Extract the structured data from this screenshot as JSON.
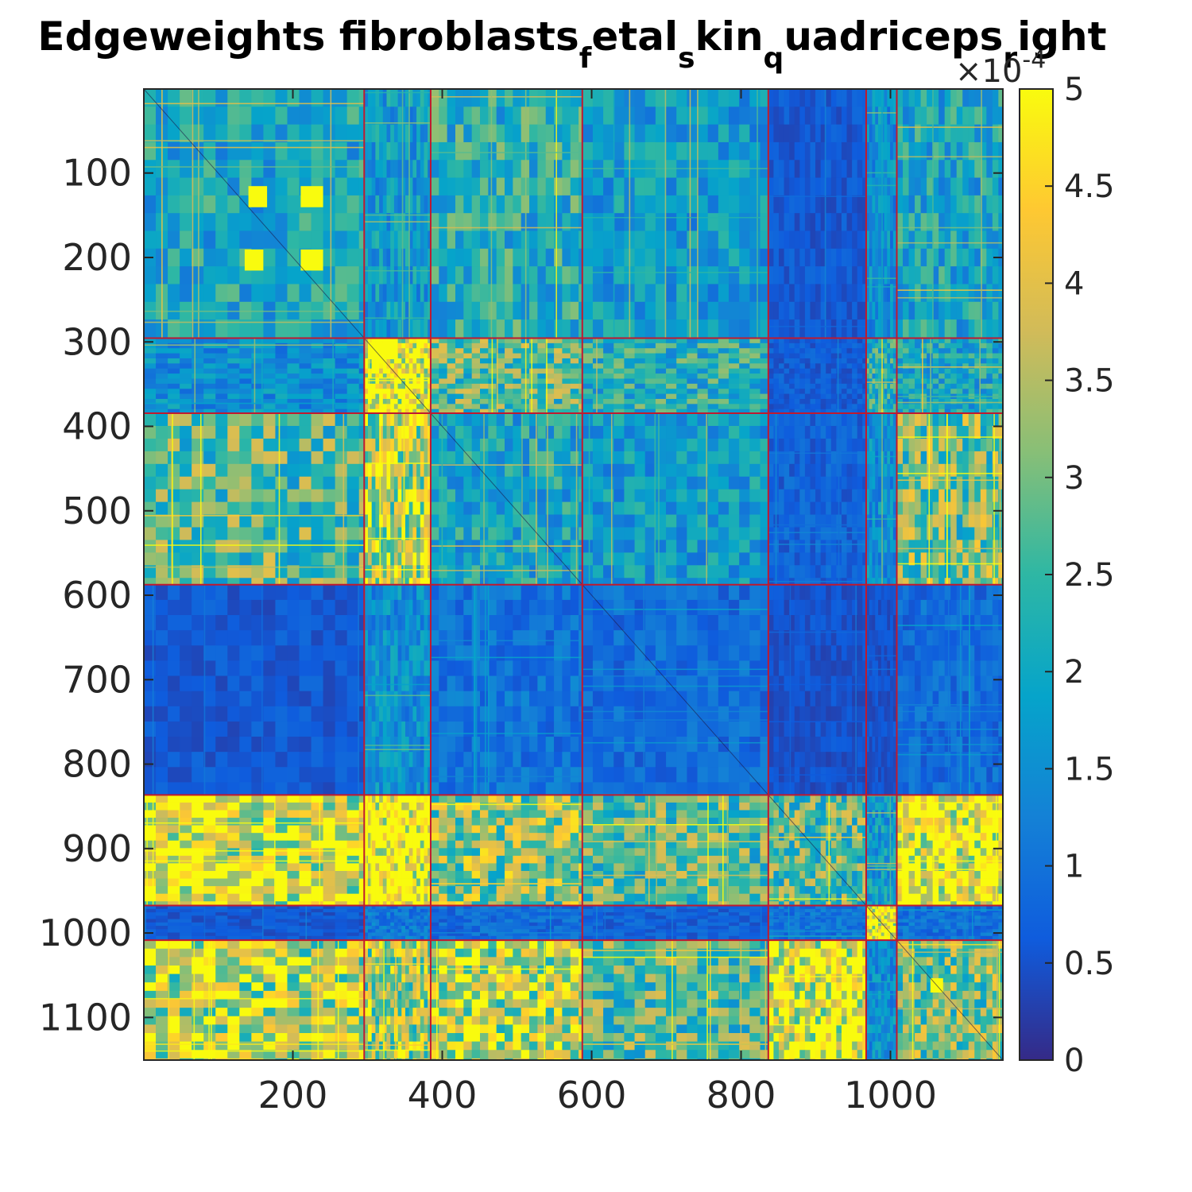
{
  "chart_data": {
    "type": "heatmap",
    "title": {
      "parts": [
        {
          "text": "Edgeweights fibroblasts",
          "sub": false
        },
        {
          "text": "f",
          "sub": true
        },
        {
          "text": "etal",
          "sub": false
        },
        {
          "text": "s",
          "sub": true
        },
        {
          "text": "kin",
          "sub": false
        },
        {
          "text": "q",
          "sub": true
        },
        {
          "text": "uadriceps",
          "sub": false
        },
        {
          "text": "r",
          "sub": true
        },
        {
          "text": "ight",
          "sub": false
        }
      ]
    },
    "matrix_size": 1150,
    "xlim": [
      1,
      1150
    ],
    "ylim": [
      1,
      1150
    ],
    "y_reversed": true,
    "x_ticks": [
      200,
      400,
      600,
      800,
      1000
    ],
    "x_tick_labels": [
      "200",
      "400",
      "600",
      "800",
      "1000"
    ],
    "y_ticks": [
      100,
      200,
      300,
      400,
      500,
      600,
      700,
      800,
      900,
      1000,
      1100
    ],
    "y_tick_labels": [
      "100",
      "200",
      "300",
      "400",
      "500",
      "600",
      "700",
      "800",
      "900",
      "1000",
      "1100"
    ],
    "block_boundaries": [
      295,
      384,
      587,
      836,
      967,
      1008
    ],
    "colorbar": {
      "colormap": "parula",
      "range": [
        0,
        5
      ],
      "ticks": [
        0,
        0.5,
        1,
        1.5,
        2,
        2.5,
        3,
        3.5,
        4,
        4.5,
        5
      ],
      "tick_labels": [
        "0",
        "0.5",
        "1",
        "1.5",
        "2",
        "2.5",
        "3",
        "3.5",
        "4",
        "4.5",
        "5"
      ],
      "multiplier": "×10",
      "exponent": "-4"
    },
    "boundary_color": "#c0192f",
    "colors": [
      "#352a87",
      "#0f5cdd",
      "#1481d6",
      "#06a4ca",
      "#2eb7a4",
      "#87bf77",
      "#d1bb59",
      "#fec832",
      "#f9fb0e"
    ],
    "blocks": [
      [
        0.4,
        0.35,
        0.45,
        0.35,
        0.12,
        0.3,
        0.4
      ],
      [
        0.3,
        0.95,
        0.55,
        0.45,
        0.13,
        0.45,
        0.4
      ],
      [
        0.55,
        0.75,
        0.4,
        0.35,
        0.15,
        0.3,
        0.6
      ],
      [
        0.12,
        0.3,
        0.2,
        0.18,
        0.1,
        0.1,
        0.18
      ],
      [
        0.85,
        1.0,
        0.65,
        0.55,
        0.55,
        0.35,
        0.95
      ],
      [
        0.12,
        0.22,
        0.18,
        0.15,
        0.2,
        1.0,
        0.2
      ],
      [
        0.75,
        0.7,
        0.75,
        0.55,
        0.9,
        0.3,
        0.6
      ]
    ],
    "bright_sub_blocks": [
      [
        115,
        140,
        140,
        165
      ],
      [
        190,
        215,
        210,
        240
      ],
      [
        190,
        215,
        135,
        160
      ],
      [
        115,
        140,
        210,
        240
      ],
      [
        300,
        320,
        300,
        340
      ],
      [
        1053,
        1070,
        1053,
        1070
      ]
    ]
  }
}
